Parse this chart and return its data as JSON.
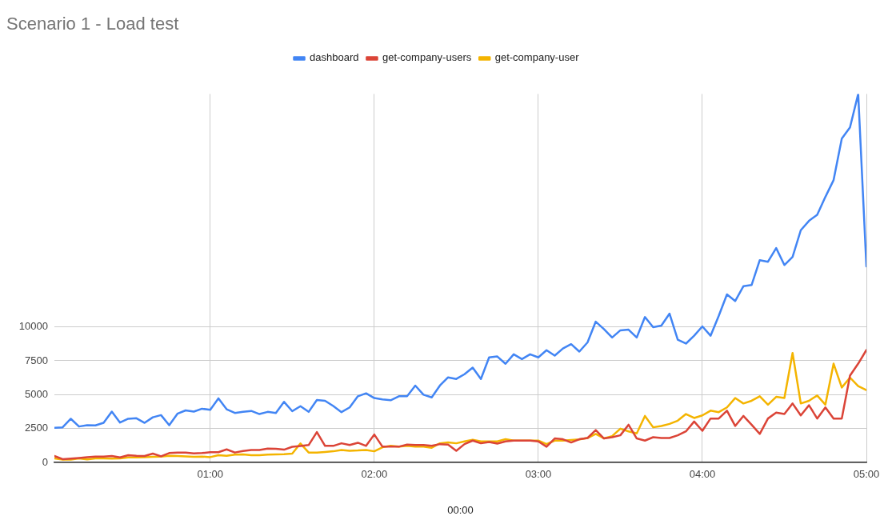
{
  "chart_data": {
    "type": "line",
    "title": "Scenario 1 - Load test",
    "xlabel": "00:00",
    "x": [
      0.05,
      0.1,
      0.15,
      0.2,
      0.25,
      0.3,
      0.35,
      0.4,
      0.45,
      0.5,
      0.55,
      0.6,
      0.65,
      0.7,
      0.75,
      0.8,
      0.85,
      0.9,
      0.95,
      1,
      1.05,
      1.1,
      1.15,
      1.2,
      1.25,
      1.3,
      1.35,
      1.4,
      1.45,
      1.5,
      1.55,
      1.6,
      1.65,
      1.7,
      1.75,
      1.8,
      1.85,
      1.9,
      1.95,
      2,
      2.05,
      2.1,
      2.15,
      2.2,
      2.25,
      2.3,
      2.35,
      2.4,
      2.45,
      2.5,
      2.55,
      2.6,
      2.65,
      2.7,
      2.75,
      2.8,
      2.85,
      2.9,
      2.95,
      3,
      3.05,
      3.1,
      3.15,
      3.2,
      3.25,
      3.3,
      3.35,
      3.4,
      3.45,
      3.5,
      3.55,
      3.6,
      3.65,
      3.7,
      3.75,
      3.8,
      3.85,
      3.9,
      3.95,
      4,
      4.05,
      4.1,
      4.15,
      4.2,
      4.25,
      4.3,
      4.35,
      4.4,
      4.45,
      4.5,
      4.55,
      4.6,
      4.65,
      4.7,
      4.75,
      4.8,
      4.85,
      4.9,
      4.95,
      5
    ],
    "xlim": [
      0.05,
      5
    ],
    "xticks": [
      {
        "value": 1,
        "label": "01:00"
      },
      {
        "value": 2,
        "label": "02:00"
      },
      {
        "value": 3,
        "label": "03:00"
      },
      {
        "value": 4,
        "label": "04:00"
      },
      {
        "value": 5,
        "label": "05:00"
      }
    ],
    "ylim": [
      0,
      27200
    ],
    "yticks": [
      0,
      2500,
      5000,
      7500,
      10000
    ],
    "grid": true,
    "legend": "top",
    "series": [
      {
        "name": "dashboard",
        "color": "#4285f4",
        "values": [
          2550,
          2590,
          3220,
          2650,
          2750,
          2730,
          2920,
          3750,
          2940,
          3220,
          3260,
          2920,
          3330,
          3490,
          2750,
          3590,
          3840,
          3750,
          3960,
          3880,
          4730,
          3920,
          3650,
          3730,
          3800,
          3570,
          3730,
          3650,
          4470,
          3780,
          4150,
          3730,
          4610,
          4550,
          4160,
          3710,
          4060,
          4880,
          5100,
          4750,
          4650,
          4590,
          4880,
          4880,
          5670,
          5000,
          4800,
          5670,
          6280,
          6160,
          6510,
          7000,
          6160,
          7750,
          7820,
          7280,
          7980,
          7630,
          7980,
          7750,
          8280,
          7880,
          8410,
          8730,
          8180,
          8860,
          10390,
          9840,
          9220,
          9750,
          9800,
          9220,
          10730,
          9980,
          10100,
          10980,
          9060,
          8770,
          9350,
          10040,
          9350,
          10820,
          12400,
          11910,
          13000,
          13090,
          14930,
          14810,
          15820,
          14570,
          15170,
          17140,
          17830,
          18280,
          19600,
          20840,
          23900,
          24730,
          27200,
          14470
        ]
      },
      {
        "name": "get-company-users",
        "color": "#db4437",
        "values": [
          470,
          240,
          280,
          330,
          390,
          430,
          430,
          470,
          370,
          530,
          490,
          470,
          650,
          450,
          690,
          730,
          730,
          670,
          690,
          750,
          750,
          960,
          730,
          840,
          920,
          920,
          1020,
          1000,
          940,
          1150,
          1210,
          1280,
          2240,
          1220,
          1220,
          1410,
          1280,
          1450,
          1220,
          2060,
          1160,
          1160,
          1160,
          1310,
          1280,
          1280,
          1220,
          1350,
          1310,
          860,
          1350,
          1610,
          1410,
          1510,
          1390,
          1550,
          1610,
          1610,
          1610,
          1550,
          1160,
          1770,
          1710,
          1470,
          1710,
          1800,
          2390,
          1770,
          1860,
          2000,
          2780,
          1770,
          1610,
          1860,
          1800,
          1800,
          2000,
          2290,
          3020,
          2330,
          3240,
          3240,
          3820,
          2690,
          3430,
          2780,
          2100,
          3240,
          3670,
          3570,
          4350,
          3470,
          4220,
          3240,
          4060,
          3240,
          3240,
          6410,
          7290,
          8300
        ]
      },
      {
        "name": "get-company-user",
        "color": "#f4b400",
        "values": [
          290,
          200,
          200,
          290,
          220,
          290,
          290,
          280,
          290,
          370,
          370,
          390,
          410,
          430,
          490,
          470,
          450,
          410,
          430,
          390,
          530,
          490,
          570,
          590,
          530,
          530,
          570,
          590,
          610,
          650,
          1400,
          730,
          730,
          770,
          820,
          920,
          860,
          880,
          920,
          820,
          1120,
          1220,
          1160,
          1220,
          1160,
          1160,
          1080,
          1410,
          1470,
          1410,
          1550,
          1670,
          1550,
          1550,
          1550,
          1710,
          1610,
          1610,
          1610,
          1610,
          1350,
          1610,
          1610,
          1650,
          1700,
          1800,
          2100,
          1770,
          1940,
          2490,
          2290,
          2140,
          3430,
          2590,
          2690,
          2840,
          3080,
          3570,
          3280,
          3470,
          3820,
          3710,
          4060,
          4750,
          4350,
          4550,
          4880,
          4260,
          4840,
          4750,
          8080,
          4350,
          4550,
          4940,
          4260,
          7290,
          5530,
          6260,
          5630,
          5330
        ]
      }
    ]
  }
}
